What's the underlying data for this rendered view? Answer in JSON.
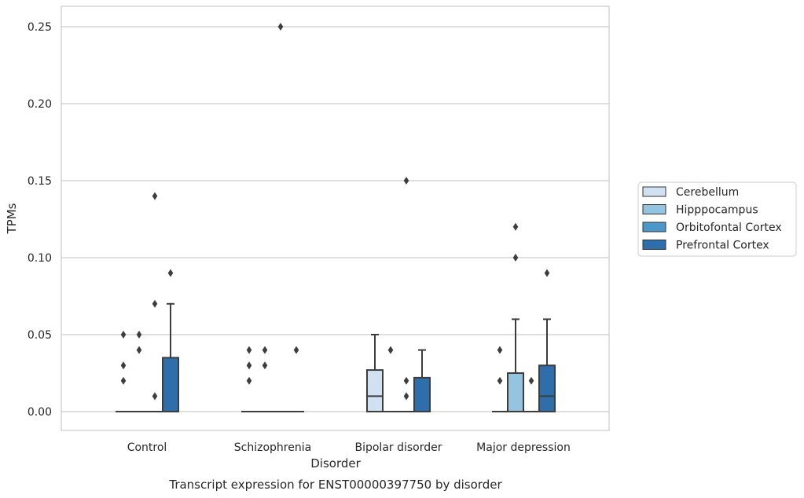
{
  "chart_data": {
    "type": "box",
    "title": "",
    "caption": "Transcript expression for ENST00000397750 by disorder",
    "xlabel": "Disorder",
    "ylabel": "TPMs",
    "ylim": [
      -0.012,
      0.263
    ],
    "yticks": [
      "0.00",
      "0.05",
      "0.10",
      "0.15",
      "0.20",
      "0.25"
    ],
    "ytick_values": [
      0,
      0.05,
      0.1,
      0.15,
      0.2,
      0.25
    ],
    "grid": "horizontal",
    "legend_position": "right",
    "categories": [
      "Control",
      "Schizophrenia",
      "Bipolar disorder",
      "Major depression"
    ],
    "series": [
      {
        "name": "Cerebellum",
        "color": "#d0e1f2",
        "boxes": [
          {
            "q1": 0,
            "median": 0,
            "q3": 0,
            "whisker_low": 0,
            "whisker_high": 0,
            "outliers": [
              0.02,
              0.03,
              0.05
            ]
          },
          {
            "q1": 0,
            "median": 0,
            "q3": 0,
            "whisker_low": 0,
            "whisker_high": 0,
            "outliers": [
              0.02,
              0.03,
              0.04
            ]
          },
          {
            "q1": 0,
            "median": 0.01,
            "q3": 0.027,
            "whisker_low": 0,
            "whisker_high": 0.05,
            "outliers": []
          },
          {
            "q1": 0,
            "median": 0,
            "q3": 0,
            "whisker_low": 0,
            "whisker_high": 0,
            "outliers": [
              0.02,
              0.04
            ]
          }
        ]
      },
      {
        "name": "Hipppocampus",
        "color": "#94c4df",
        "boxes": [
          {
            "q1": 0,
            "median": 0,
            "q3": 0,
            "whisker_low": 0,
            "whisker_high": 0,
            "outliers": [
              0.04,
              0.05
            ]
          },
          {
            "q1": 0,
            "median": 0,
            "q3": 0,
            "whisker_low": 0,
            "whisker_high": 0,
            "outliers": [
              0.03,
              0.04
            ]
          },
          {
            "q1": 0,
            "median": 0,
            "q3": 0,
            "whisker_low": 0,
            "whisker_high": 0,
            "outliers": [
              0.04
            ]
          },
          {
            "q1": 0,
            "median": 0,
            "q3": 0.025,
            "whisker_low": 0,
            "whisker_high": 0.06,
            "outliers": [
              0.1,
              0.12
            ]
          }
        ]
      },
      {
        "name": "Orbitofontal Cortex",
        "color": "#4a98c9",
        "boxes": [
          {
            "q1": 0,
            "median": 0,
            "q3": 0,
            "whisker_low": 0,
            "whisker_high": 0,
            "outliers": [
              0.01,
              0.07,
              0.14
            ]
          },
          {
            "q1": 0,
            "median": 0,
            "q3": 0,
            "whisker_low": 0,
            "whisker_high": 0,
            "outliers": [
              0.25
            ]
          },
          {
            "q1": 0,
            "median": 0,
            "q3": 0,
            "whisker_low": 0,
            "whisker_high": 0,
            "outliers": [
              0.01,
              0.02,
              0.15
            ]
          },
          {
            "q1": 0,
            "median": 0,
            "q3": 0,
            "whisker_low": 0,
            "whisker_high": 0,
            "outliers": [
              0.02
            ]
          }
        ]
      },
      {
        "name": "Prefrontal Cortex",
        "color": "#2e6fab",
        "boxes": [
          {
            "q1": 0,
            "median": 0,
            "q3": 0.035,
            "whisker_low": 0,
            "whisker_high": 0.07,
            "outliers": [
              0.09
            ]
          },
          {
            "q1": 0,
            "median": 0,
            "q3": 0,
            "whisker_low": 0,
            "whisker_high": 0,
            "outliers": [
              0.04
            ]
          },
          {
            "q1": 0,
            "median": 0,
            "q3": 0.022,
            "whisker_low": 0,
            "whisker_high": 0.04,
            "outliers": []
          },
          {
            "q1": 0,
            "median": 0.01,
            "q3": 0.03,
            "whisker_low": 0,
            "whisker_high": 0.06,
            "outliers": [
              0.09
            ]
          }
        ]
      }
    ]
  }
}
